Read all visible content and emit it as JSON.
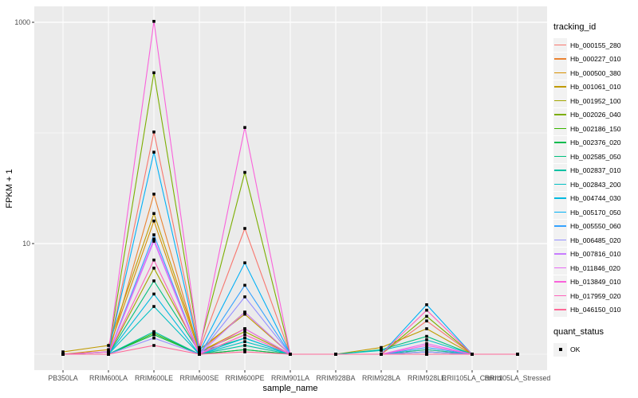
{
  "chart_data": {
    "type": "line",
    "title": "",
    "xlabel": "sample_name",
    "ylabel": "FPKM + 1",
    "y_scale": "log10",
    "y_major_ticks": [
      10,
      1000
    ],
    "y_minor_gridlines": [
      1,
      100
    ],
    "grid": true,
    "panel_bg": "#ebebeb",
    "gridline_color": "#ffffff",
    "point_color": "#000000",
    "legend_position": "right",
    "legend_title": "tracking_id",
    "legend2_title": "quant_status",
    "legend2_items": [
      {
        "label": "OK",
        "glyph": "black-square"
      }
    ],
    "categories": [
      "PB350LA",
      "RRIM600LA",
      "RRIM600LE",
      "RRIM600SE",
      "RRIM600PE",
      "RRIM901LA",
      "RRIM928BA",
      "RRIM928LA",
      "RRIM928LE",
      "RRII105LA_Control",
      "RRII105LA_Stressed"
    ],
    "series": [
      {
        "name": "Hb_000155_280",
        "color": "#F8766D",
        "values": [
          1,
          1.05,
          102,
          1.1,
          13.7,
          1,
          1,
          1,
          2.0,
          1,
          1
        ]
      },
      {
        "name": "Hb_000227_010",
        "color": "#EA8331",
        "values": [
          1,
          1,
          28,
          1.05,
          2.4,
          1,
          1,
          1,
          1.1,
          1,
          1
        ]
      },
      {
        "name": "Hb_000500_380",
        "color": "#D89000",
        "values": [
          1,
          1.1,
          16,
          1.05,
          1.7,
          1,
          1,
          1,
          1.05,
          1,
          1
        ]
      },
      {
        "name": "Hb_001061_010",
        "color": "#C09B00",
        "values": [
          1.05,
          1.2,
          18.7,
          1.1,
          2.3,
          1,
          1,
          1.15,
          1.7,
          1,
          1
        ]
      },
      {
        "name": "Hb_001952_100",
        "color": "#A3A500",
        "values": [
          1,
          1,
          6.0,
          1.05,
          1.6,
          1,
          1,
          1,
          1.05,
          1,
          1
        ]
      },
      {
        "name": "Hb_002026_040",
        "color": "#7CAE00",
        "values": [
          1,
          1.05,
          350,
          1.15,
          44,
          1,
          1,
          1,
          2.2,
          1,
          1
        ]
      },
      {
        "name": "Hb_002186_150",
        "color": "#39B600",
        "values": [
          1,
          1,
          1.55,
          1,
          1.1,
          1,
          1,
          1,
          1,
          1,
          1
        ]
      },
      {
        "name": "Hb_002376_020",
        "color": "#00BB4E",
        "values": [
          1,
          1,
          1.5,
          1,
          1.1,
          1,
          1,
          1,
          1,
          1,
          1
        ]
      },
      {
        "name": "Hb_002585_050",
        "color": "#00BF7D",
        "values": [
          1,
          1,
          4.6,
          1.05,
          1.4,
          1,
          1,
          1.1,
          1.45,
          1,
          1
        ]
      },
      {
        "name": "Hb_002837_010",
        "color": "#00C1A3",
        "values": [
          1,
          1,
          1.6,
          1,
          1.2,
          1,
          1,
          1,
          1.1,
          1,
          1
        ]
      },
      {
        "name": "Hb_002843_200",
        "color": "#00BFC4",
        "values": [
          1,
          1,
          2.7,
          1,
          1.3,
          1,
          1,
          1.08,
          1.35,
          1,
          1
        ]
      },
      {
        "name": "Hb_004744_030",
        "color": "#00BAE0",
        "values": [
          1,
          1,
          3.5,
          1,
          1.4,
          1,
          1,
          1,
          1.05,
          1,
          1
        ]
      },
      {
        "name": "Hb_005170_050",
        "color": "#00B0F6",
        "values": [
          1,
          1.05,
          67,
          1.05,
          6.7,
          1,
          1,
          1,
          2.8,
          1,
          1
        ]
      },
      {
        "name": "Hb_005550_060",
        "color": "#35A2FF",
        "values": [
          1,
          1,
          12,
          1,
          4.2,
          1,
          1,
          1,
          1.15,
          1,
          1
        ]
      },
      {
        "name": "Hb_006485_020",
        "color": "#9590FF",
        "values": [
          1,
          1,
          1.4,
          1,
          3.3,
          1,
          1,
          1,
          1.05,
          1,
          1
        ]
      },
      {
        "name": "Hb_007816_010",
        "color": "#C77CFF",
        "values": [
          1,
          1,
          10.5,
          1,
          2.4,
          1,
          1,
          1,
          1,
          1,
          1
        ]
      },
      {
        "name": "Hb_011846_020",
        "color": "#E76BF3",
        "values": [
          1,
          1,
          11,
          1,
          1.7,
          1,
          1,
          1,
          1.25,
          1,
          1
        ]
      },
      {
        "name": "Hb_013849_010",
        "color": "#FA62DB",
        "values": [
          1,
          1.05,
          1020,
          1.1,
          112,
          1,
          1,
          1,
          1.2,
          1,
          1
        ]
      },
      {
        "name": "Hb_017959_020",
        "color": "#FF62BC",
        "values": [
          1,
          1,
          7.1,
          1,
          1.5,
          1,
          1,
          1,
          2.5,
          1,
          1
        ]
      },
      {
        "name": "Hb_046150_010",
        "color": "#FF6A98",
        "values": [
          1,
          1,
          1.2,
          1,
          1.05,
          1,
          1,
          1,
          1,
          1,
          1
        ]
      }
    ]
  }
}
